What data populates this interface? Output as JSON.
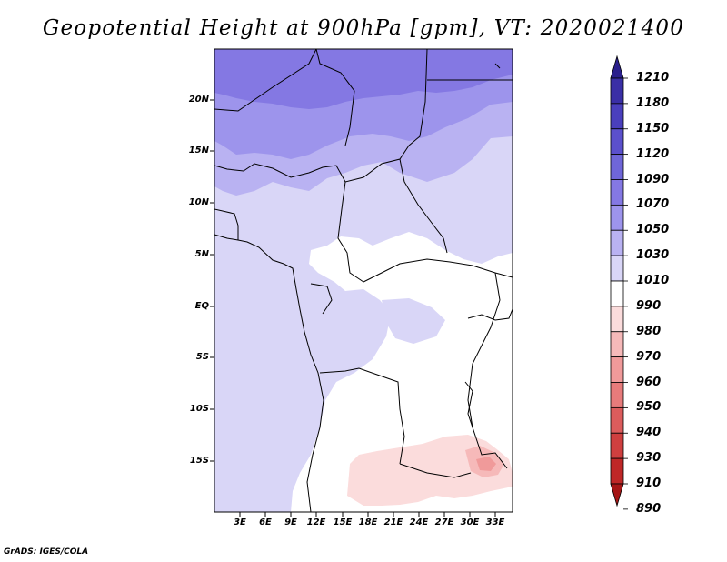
{
  "title": "Geopotential Height at 900hPa [gpm], VT: 2020021400",
  "footer": "GrADS: IGES/COLA",
  "lat_labels": [
    "20N",
    "15N",
    "10N",
    "5N",
    "EQ",
    "5S",
    "10S",
    "15S"
  ],
  "lon_labels": [
    "3E",
    "6E",
    "9E",
    "12E",
    "15E",
    "18E",
    "21E",
    "24E",
    "27E",
    "30E",
    "33E"
  ],
  "colorbar": {
    "labels": [
      "1210",
      "1180",
      "1150",
      "1120",
      "1090",
      "1070",
      "1050",
      "1030",
      "1010",
      "990",
      "980",
      "970",
      "960",
      "950",
      "940",
      "930",
      "910",
      "890"
    ],
    "colors": [
      "#2a1f8c",
      "#3a2fa6",
      "#4a3fbd",
      "#5b50cc",
      "#6f66d8",
      "#8478e3",
      "#9d94ec",
      "#b9b2f2",
      "#d9d6f7",
      "#ffffff",
      "#fbdcdc",
      "#f6b9b9",
      "#f09a9a",
      "#e77b7b",
      "#dc5c5c",
      "#cf3f3f",
      "#bf2727",
      "#a51616"
    ]
  },
  "map": {
    "lat_range": [
      -19,
      24
    ],
    "lon_range": [
      0,
      35
    ],
    "field_colors": {
      "very_high": "#8478e3",
      "high": "#9d94ec",
      "mid_high": "#b9b2f2",
      "mid": "#d9d6f7",
      "neutral": "#ffffff",
      "low": "#fbdcdc",
      "lower": "#f6b9b9",
      "lowest": "#f09a9a"
    }
  }
}
